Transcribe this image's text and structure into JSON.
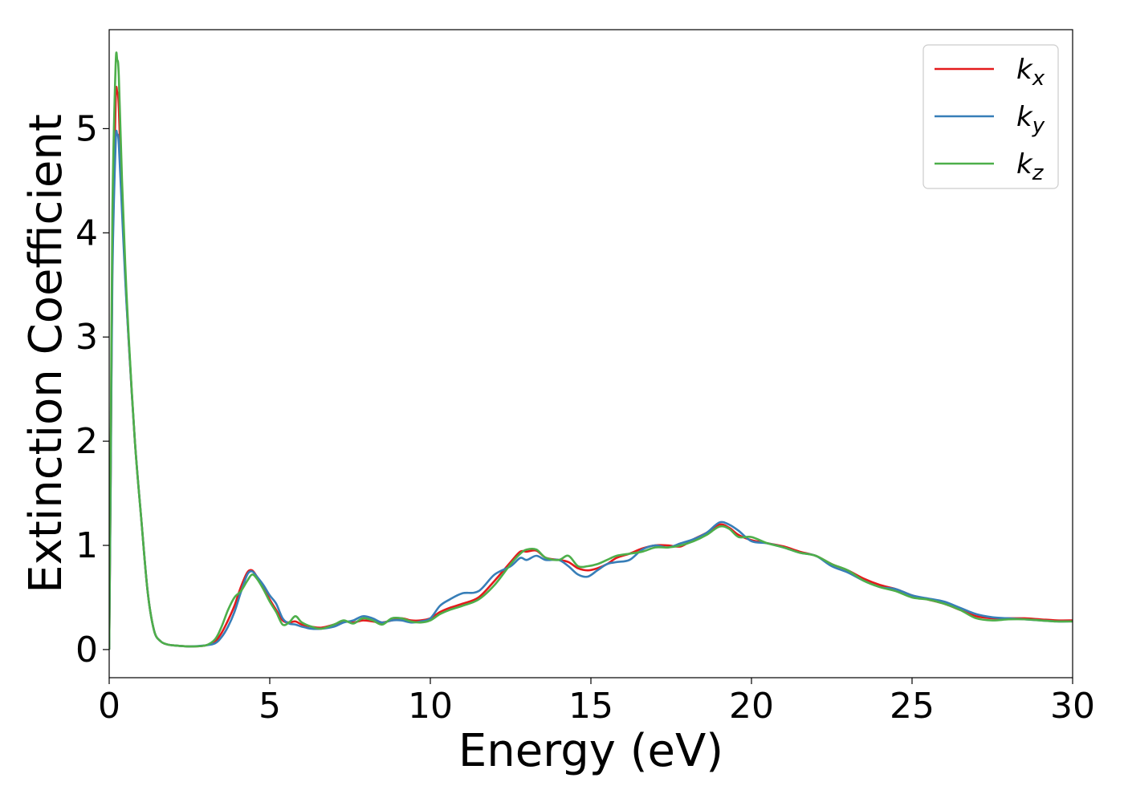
{
  "chart_data": {
    "type": "line",
    "title": "",
    "xlabel": "Energy (eV)",
    "ylabel": "Extinction Coefficient",
    "xlim": [
      0,
      30
    ],
    "ylim": [
      -0.27,
      5.95
    ],
    "xticks": [
      0,
      5,
      10,
      15,
      20,
      25,
      30
    ],
    "yticks": [
      0,
      1,
      2,
      3,
      4,
      5
    ],
    "grid": false,
    "legend_position": "top-right",
    "series": [
      {
        "name": "k",
        "subscript": "x",
        "color": "#e41a1c",
        "x": [
          0,
          0.05,
          0.1,
          0.2,
          0.25,
          0.3,
          0.4,
          0.5,
          0.6,
          0.8,
          1.0,
          1.2,
          1.4,
          1.6,
          1.8,
          2.0,
          2.5,
          3.0,
          3.3,
          3.5,
          3.7,
          3.9,
          4.1,
          4.3,
          4.45,
          4.6,
          4.8,
          5.0,
          5.2,
          5.4,
          5.6,
          5.8,
          6.0,
          6.3,
          6.6,
          7.0,
          7.3,
          7.6,
          7.9,
          8.2,
          8.5,
          8.8,
          9.1,
          9.4,
          9.7,
          10.0,
          10.3,
          10.6,
          11.0,
          11.5,
          12.0,
          12.5,
          12.8,
          13.0,
          13.3,
          13.6,
          14.0,
          14.3,
          14.6,
          14.9,
          15.2,
          15.5,
          15.8,
          16.2,
          16.6,
          17.0,
          17.4,
          17.8,
          18.2,
          18.6,
          19.0,
          19.3,
          19.6,
          20.0,
          20.5,
          21.0,
          21.5,
          22.0,
          22.5,
          23.0,
          23.5,
          24.0,
          24.5,
          25.0,
          25.5,
          26.0,
          26.5,
          27.0,
          27.5,
          28.0,
          28.5,
          29.0,
          29.5,
          30.0
        ],
        "y": [
          0.0,
          1.8,
          3.8,
          5.25,
          5.35,
          5.2,
          4.3,
          3.6,
          3.0,
          2.0,
          1.25,
          0.55,
          0.18,
          0.08,
          0.05,
          0.04,
          0.03,
          0.04,
          0.08,
          0.16,
          0.28,
          0.42,
          0.6,
          0.74,
          0.76,
          0.7,
          0.6,
          0.48,
          0.38,
          0.28,
          0.26,
          0.27,
          0.24,
          0.22,
          0.21,
          0.24,
          0.27,
          0.26,
          0.28,
          0.27,
          0.26,
          0.28,
          0.3,
          0.28,
          0.28,
          0.3,
          0.36,
          0.4,
          0.44,
          0.5,
          0.66,
          0.84,
          0.94,
          0.94,
          0.95,
          0.88,
          0.86,
          0.84,
          0.78,
          0.76,
          0.78,
          0.82,
          0.88,
          0.92,
          0.97,
          1.0,
          1.0,
          0.99,
          1.06,
          1.12,
          1.2,
          1.17,
          1.1,
          1.05,
          1.02,
          0.99,
          0.94,
          0.9,
          0.82,
          0.76,
          0.68,
          0.62,
          0.58,
          0.52,
          0.48,
          0.44,
          0.38,
          0.32,
          0.3,
          0.3,
          0.3,
          0.29,
          0.28,
          0.28
        ]
      },
      {
        "name": "k",
        "subscript": "y",
        "color": "#377eb8",
        "x": [
          0,
          0.05,
          0.1,
          0.2,
          0.25,
          0.3,
          0.4,
          0.5,
          0.6,
          0.8,
          1.0,
          1.2,
          1.4,
          1.6,
          1.8,
          2.0,
          2.5,
          3.0,
          3.3,
          3.5,
          3.7,
          3.9,
          4.1,
          4.3,
          4.45,
          4.6,
          4.8,
          5.0,
          5.2,
          5.4,
          5.6,
          5.8,
          6.0,
          6.3,
          6.6,
          7.0,
          7.3,
          7.6,
          7.9,
          8.2,
          8.5,
          8.8,
          9.1,
          9.4,
          9.7,
          10.0,
          10.3,
          10.6,
          11.0,
          11.5,
          12.0,
          12.5,
          12.8,
          13.0,
          13.3,
          13.6,
          14.0,
          14.3,
          14.6,
          14.9,
          15.2,
          15.5,
          15.8,
          16.2,
          16.6,
          17.0,
          17.4,
          17.8,
          18.2,
          18.6,
          19.0,
          19.3,
          19.6,
          20.0,
          20.5,
          21.0,
          21.5,
          22.0,
          22.5,
          23.0,
          23.5,
          24.0,
          24.5,
          25.0,
          25.5,
          26.0,
          26.5,
          27.0,
          27.5,
          28.0,
          28.5,
          29.0,
          29.5,
          30.0
        ],
        "y": [
          0.0,
          1.7,
          3.6,
          4.85,
          4.94,
          4.85,
          4.2,
          3.55,
          3.0,
          2.0,
          1.25,
          0.55,
          0.18,
          0.08,
          0.05,
          0.04,
          0.03,
          0.04,
          0.06,
          0.12,
          0.22,
          0.36,
          0.55,
          0.72,
          0.75,
          0.7,
          0.62,
          0.52,
          0.44,
          0.3,
          0.25,
          0.24,
          0.22,
          0.2,
          0.2,
          0.22,
          0.26,
          0.28,
          0.32,
          0.3,
          0.26,
          0.28,
          0.28,
          0.26,
          0.27,
          0.3,
          0.42,
          0.48,
          0.54,
          0.56,
          0.72,
          0.8,
          0.88,
          0.86,
          0.9,
          0.86,
          0.86,
          0.8,
          0.72,
          0.7,
          0.76,
          0.82,
          0.84,
          0.86,
          0.96,
          1.0,
          0.98,
          1.02,
          1.06,
          1.12,
          1.22,
          1.2,
          1.14,
          1.04,
          1.02,
          0.98,
          0.93,
          0.9,
          0.8,
          0.74,
          0.66,
          0.6,
          0.58,
          0.52,
          0.49,
          0.46,
          0.4,
          0.34,
          0.31,
          0.3,
          0.29,
          0.28,
          0.27,
          0.27
        ]
      },
      {
        "name": "k",
        "subscript": "z",
        "color": "#4daf4a",
        "x": [
          0,
          0.05,
          0.1,
          0.2,
          0.25,
          0.3,
          0.4,
          0.5,
          0.6,
          0.8,
          1.0,
          1.2,
          1.4,
          1.6,
          1.8,
          2.0,
          2.5,
          3.0,
          3.3,
          3.5,
          3.7,
          3.9,
          4.1,
          4.3,
          4.45,
          4.6,
          4.8,
          5.0,
          5.2,
          5.4,
          5.6,
          5.8,
          6.0,
          6.3,
          6.6,
          7.0,
          7.3,
          7.6,
          7.9,
          8.2,
          8.5,
          8.8,
          9.1,
          9.4,
          9.7,
          10.0,
          10.3,
          10.6,
          11.0,
          11.5,
          12.0,
          12.5,
          12.8,
          13.0,
          13.3,
          13.6,
          14.0,
          14.3,
          14.6,
          14.9,
          15.2,
          15.5,
          15.8,
          16.2,
          16.6,
          17.0,
          17.4,
          17.8,
          18.2,
          18.6,
          19.0,
          19.3,
          19.6,
          20.0,
          20.5,
          21.0,
          21.5,
          22.0,
          22.5,
          23.0,
          23.5,
          24.0,
          24.5,
          25.0,
          25.5,
          26.0,
          26.5,
          27.0,
          27.5,
          28.0,
          28.5,
          29.0,
          29.5,
          30.0
        ],
        "y": [
          0.0,
          2.0,
          4.2,
          5.6,
          5.66,
          5.5,
          4.5,
          3.7,
          3.05,
          2.0,
          1.25,
          0.55,
          0.18,
          0.08,
          0.05,
          0.04,
          0.03,
          0.04,
          0.1,
          0.22,
          0.38,
          0.5,
          0.56,
          0.66,
          0.72,
          0.68,
          0.58,
          0.46,
          0.36,
          0.24,
          0.26,
          0.32,
          0.26,
          0.22,
          0.2,
          0.24,
          0.28,
          0.25,
          0.3,
          0.28,
          0.24,
          0.3,
          0.3,
          0.27,
          0.26,
          0.28,
          0.34,
          0.38,
          0.42,
          0.48,
          0.62,
          0.82,
          0.92,
          0.96,
          0.96,
          0.88,
          0.86,
          0.9,
          0.8,
          0.8,
          0.82,
          0.86,
          0.9,
          0.92,
          0.94,
          0.98,
          0.98,
          1.0,
          1.04,
          1.1,
          1.18,
          1.16,
          1.08,
          1.08,
          1.02,
          0.98,
          0.93,
          0.9,
          0.82,
          0.76,
          0.66,
          0.6,
          0.56,
          0.5,
          0.48,
          0.44,
          0.38,
          0.3,
          0.28,
          0.29,
          0.29,
          0.28,
          0.27,
          0.27
        ]
      }
    ]
  }
}
